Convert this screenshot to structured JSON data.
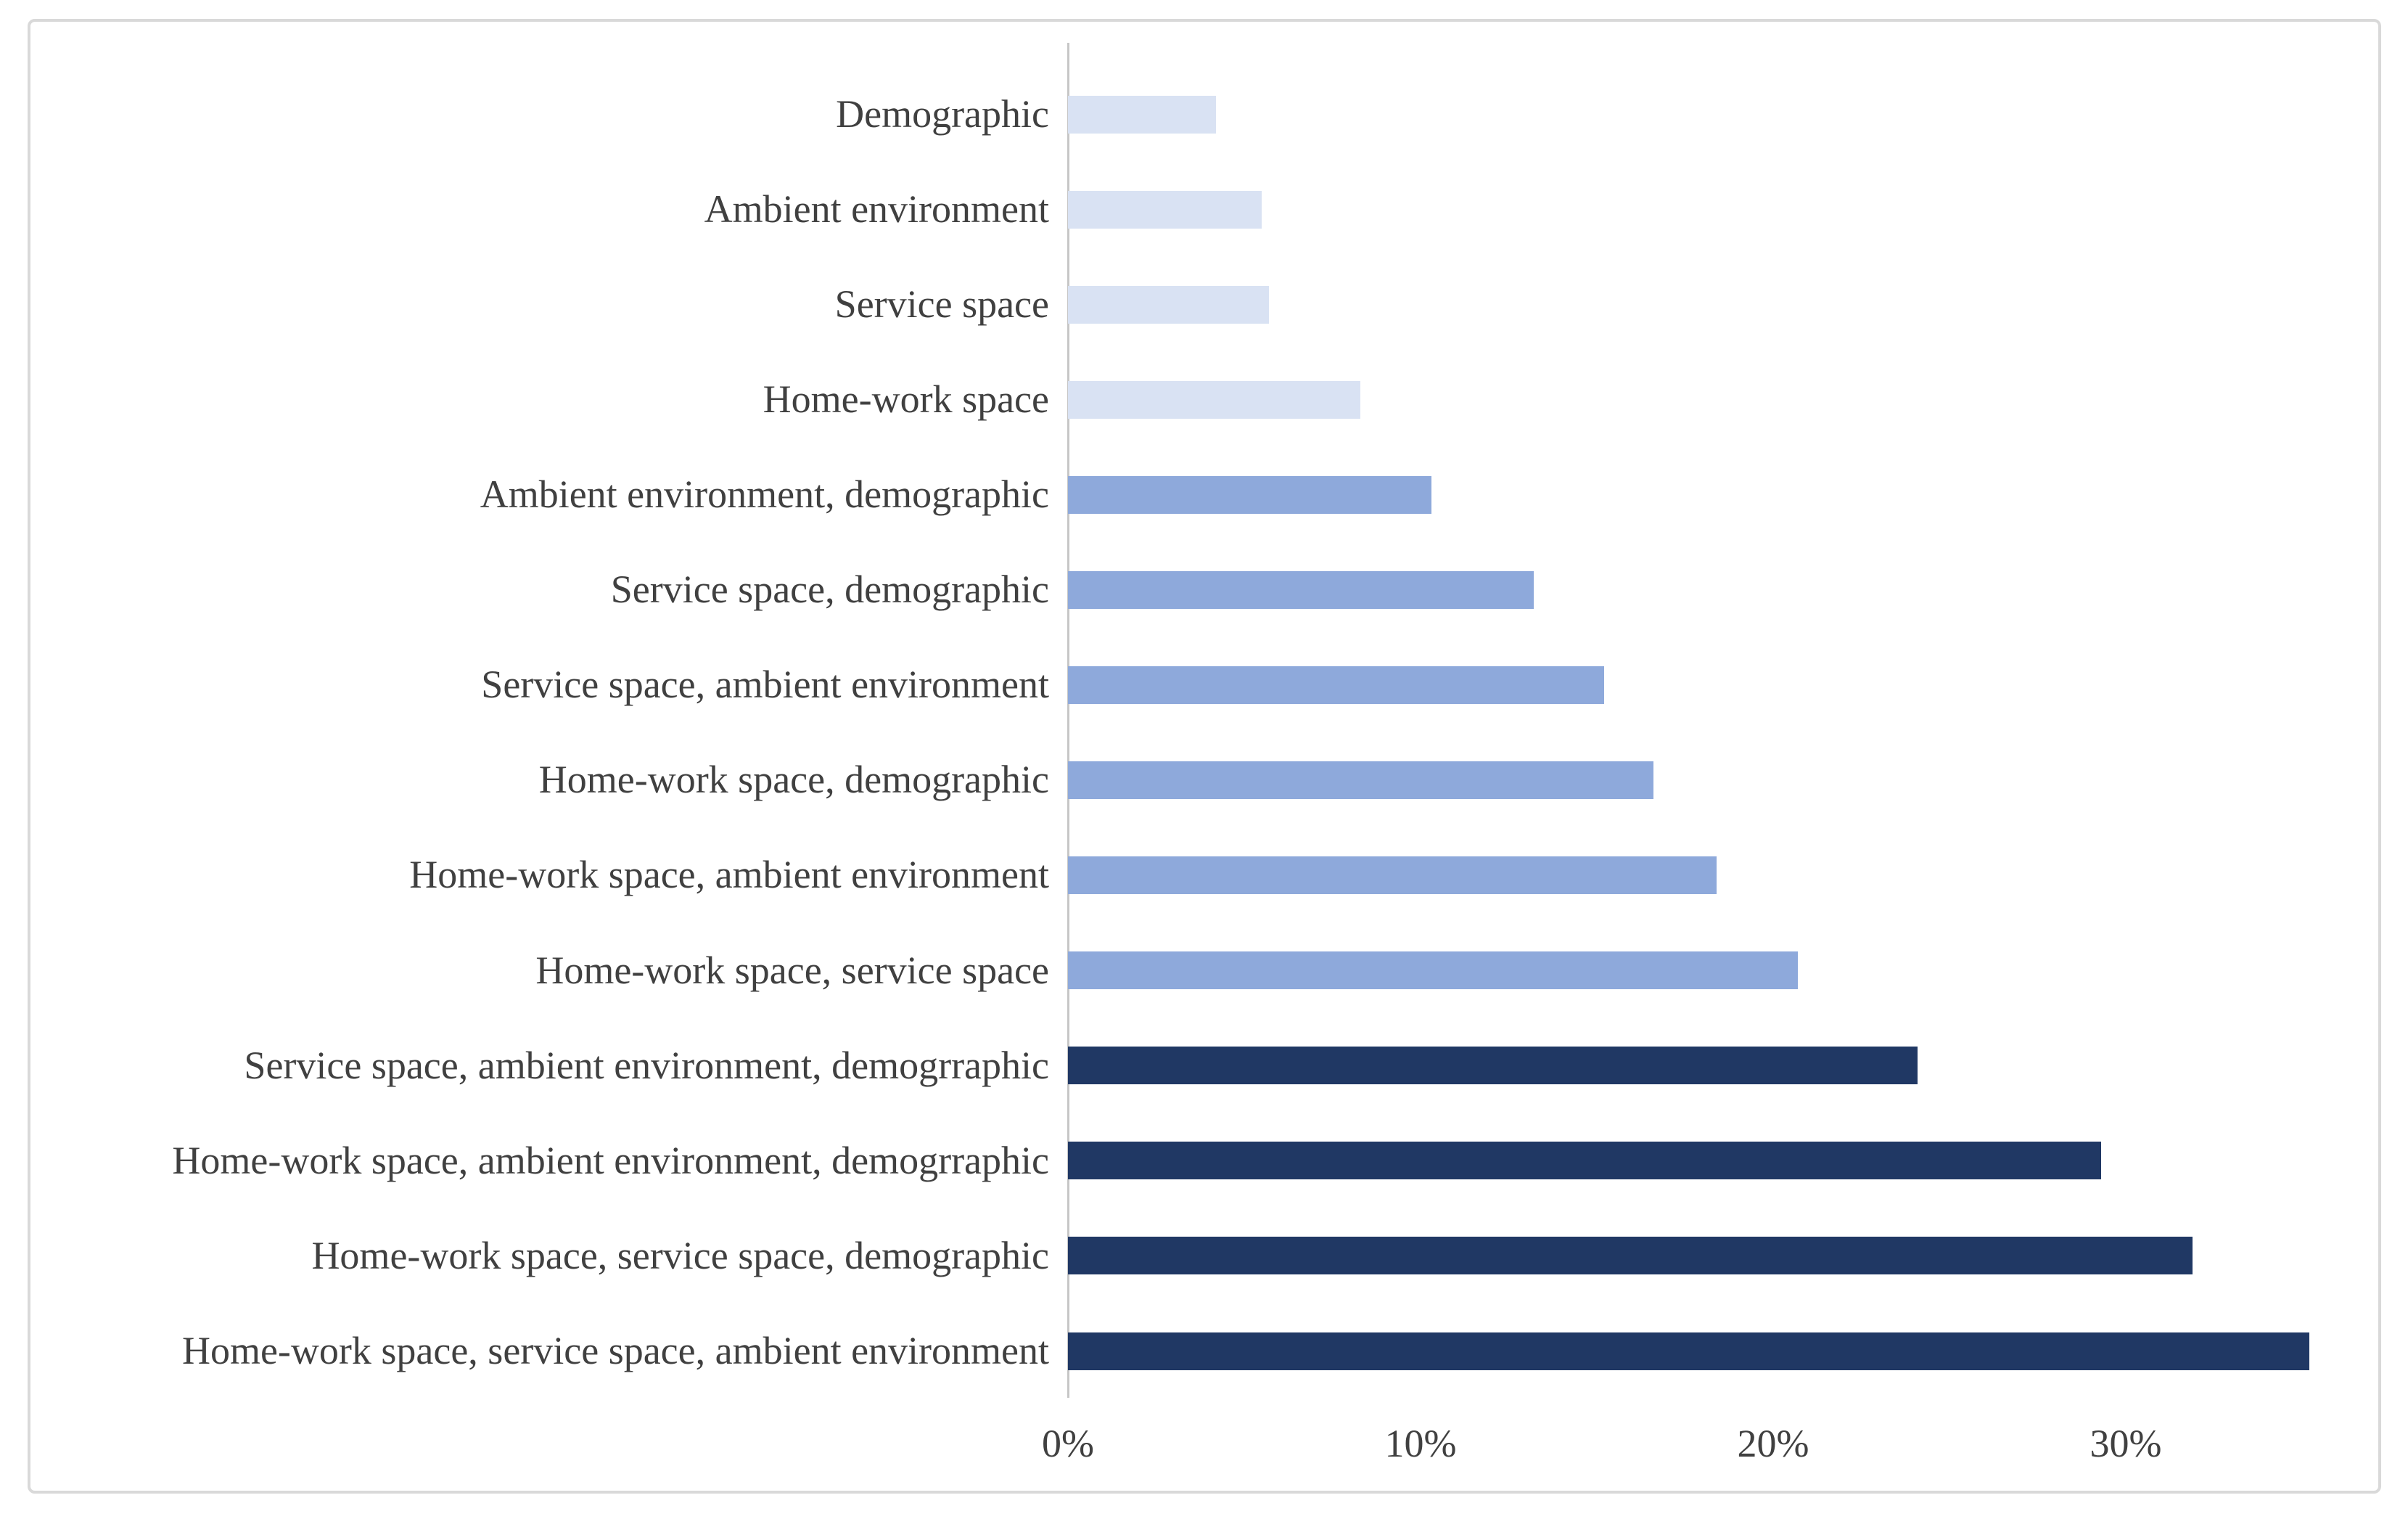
{
  "chart_data": {
    "type": "bar",
    "orientation": "horizontal",
    "title": "",
    "xlabel": "",
    "ylabel": "",
    "grid": false,
    "legend": false,
    "value_unit": "percent",
    "xlim": [
      0,
      37.3
    ],
    "x_ticks": [
      {
        "label": "0%",
        "value": 0
      },
      {
        "label": "10%",
        "value": 10
      },
      {
        "label": "20%",
        "value": 20
      },
      {
        "label": "30%",
        "value": 30
      }
    ],
    "categories": [
      "Demographic",
      "Ambient environment",
      "Service space",
      "Home-work space",
      "Ambient environment, demographic",
      "Service space, demographic",
      "Service space, ambient environment",
      "Home-work space, demographic",
      "Home-work space, ambient environment",
      "Home-work space, service space",
      "Service space,  ambient environment, demogrraphic",
      "Home-work space,  ambient environment, demogrraphic",
      "Home-work space, service space, demographic",
      "Home-work space, service space, ambient environment"
    ],
    "values": [
      4.2,
      5.5,
      5.7,
      8.3,
      10.3,
      13.2,
      15.2,
      16.6,
      18.4,
      20.7,
      24.1,
      29.3,
      31.9,
      35.2
    ],
    "bar_colors": [
      "#d9e2f3",
      "#d9e2f3",
      "#d9e2f3",
      "#d9e2f3",
      "#8ea9db",
      "#8ea9db",
      "#8ea9db",
      "#8ea9db",
      "#8ea9db",
      "#8ea9db",
      "#203864",
      "#203864",
      "#203864",
      "#203864"
    ]
  },
  "style": {
    "axis_line_color": "#c6c6c6",
    "text_color": "#404040",
    "frame_border_color": "#d9d9d9",
    "background": "#ffffff"
  }
}
